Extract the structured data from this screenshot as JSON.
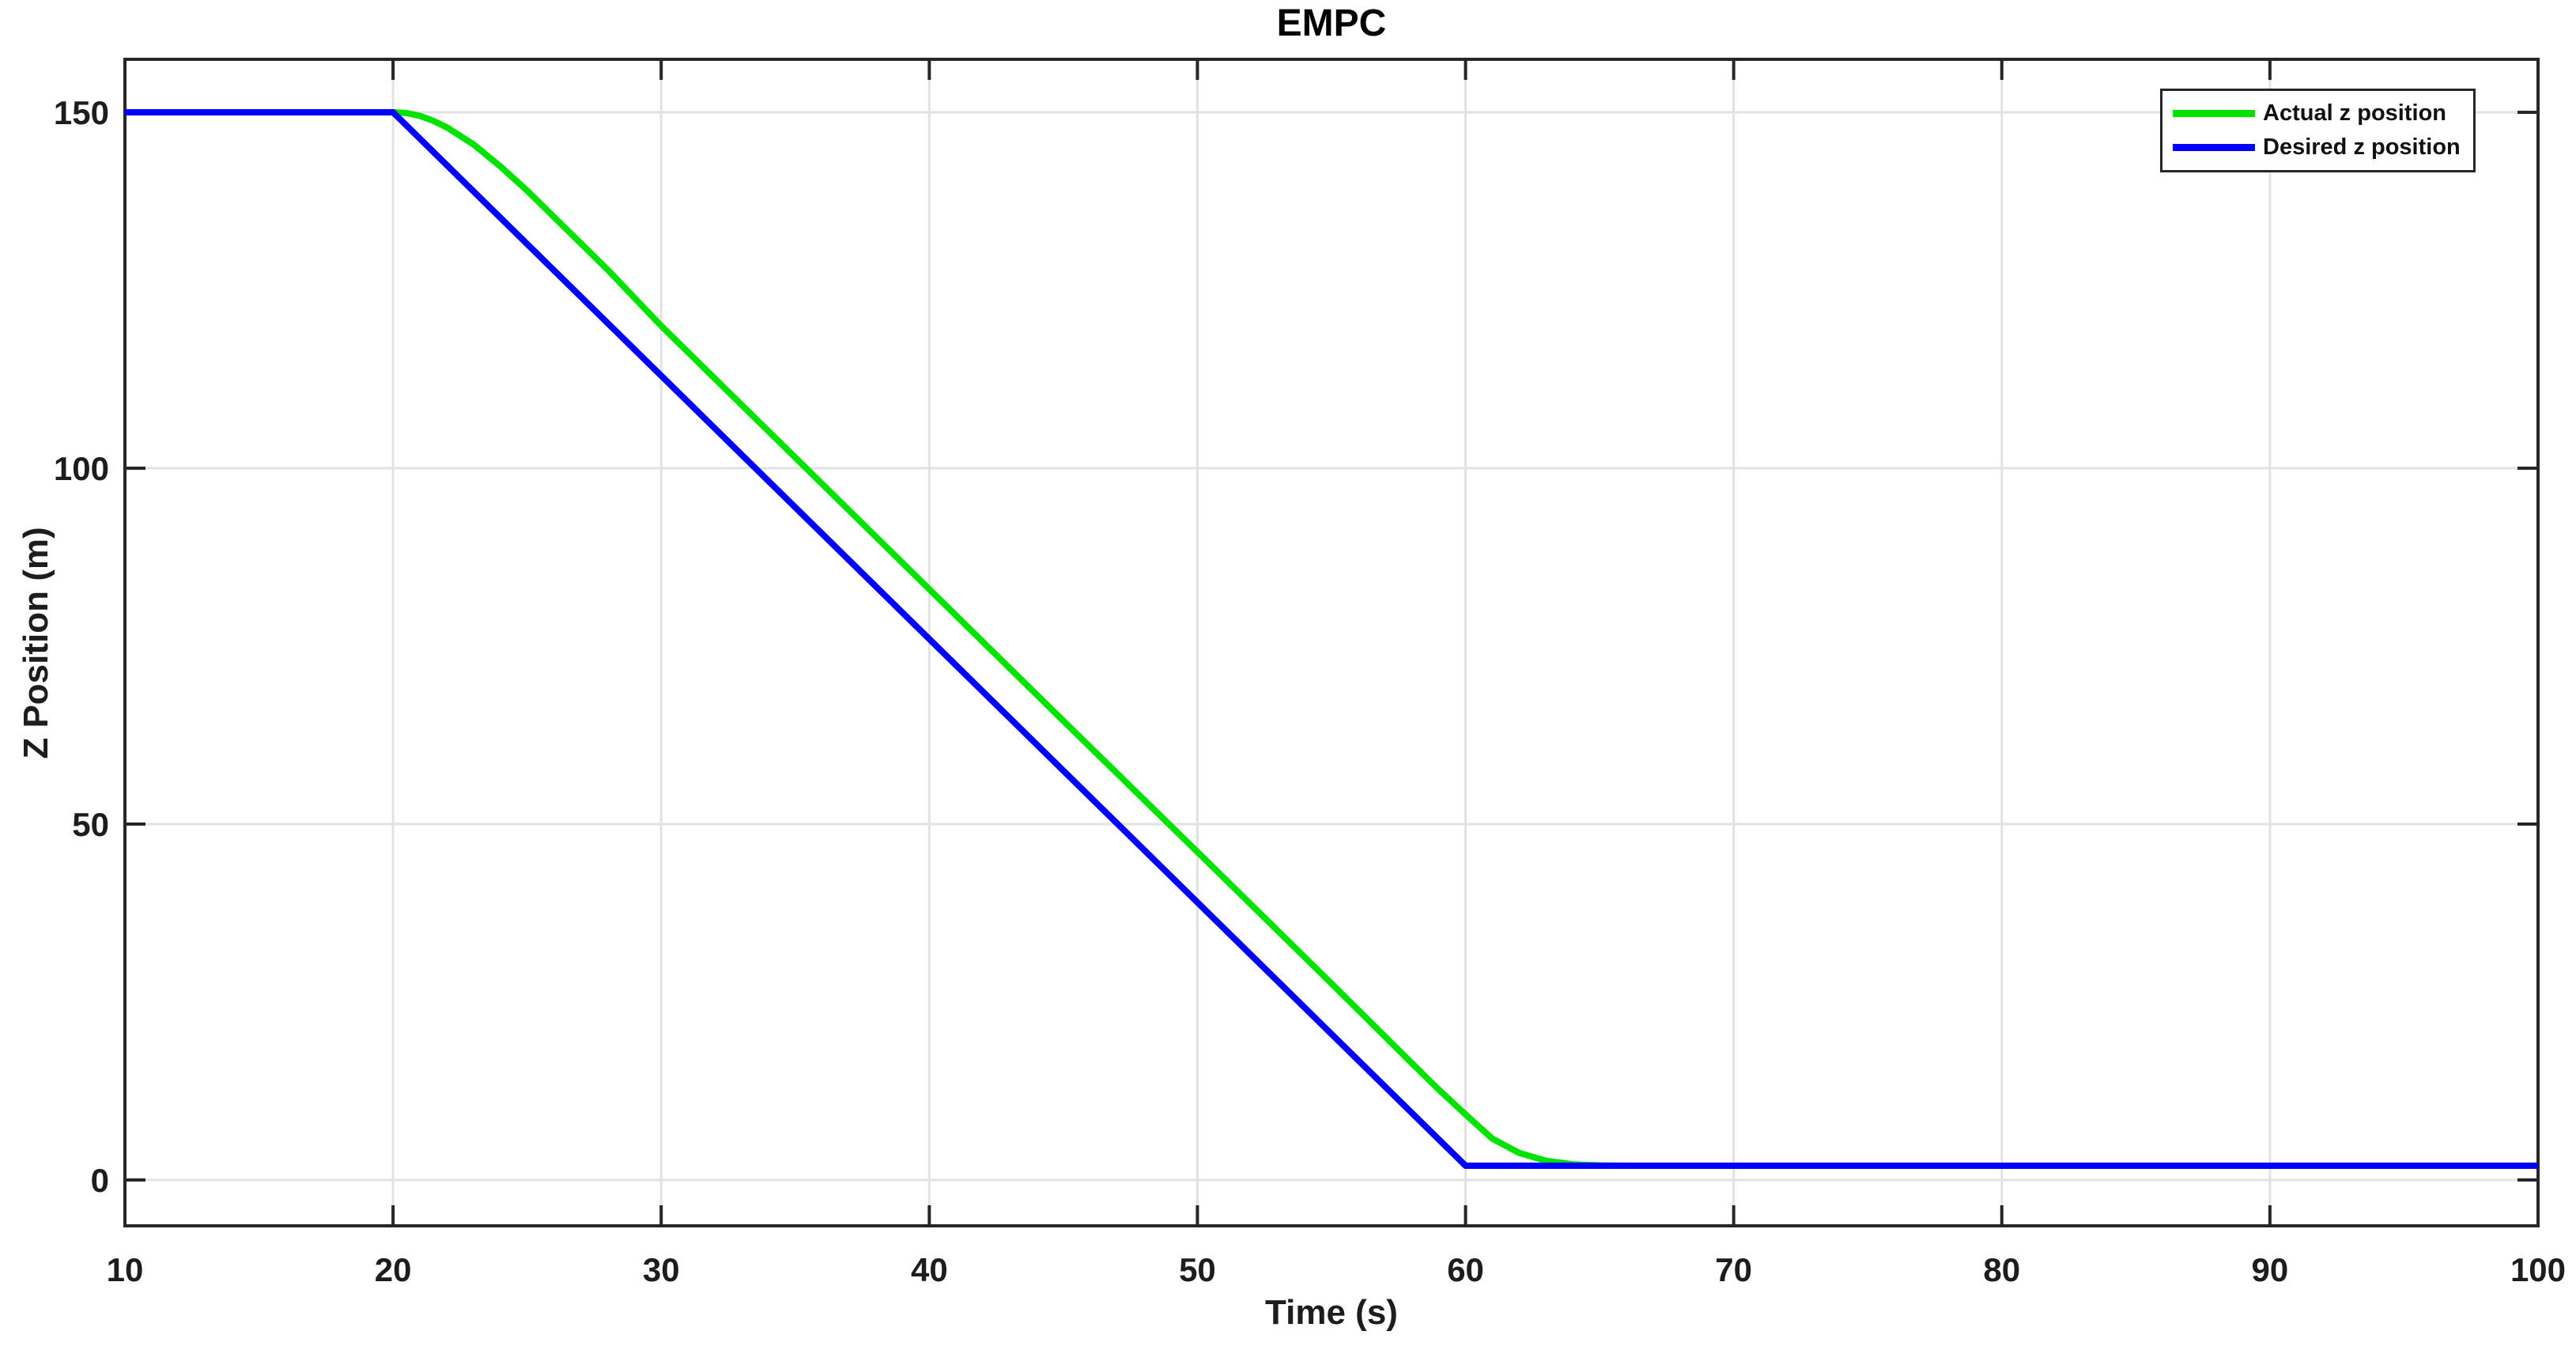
{
  "figure": {
    "title": "EMPC",
    "background": "#FFFFFF"
  },
  "colors": {
    "actual_green": "#00E300",
    "desired_blue": "#0000FF",
    "axis": "#262626",
    "grid": "#E2E2E2",
    "text": "#1D1D1D"
  },
  "legend": {
    "position": "top-right",
    "items": [
      {
        "label": "Actual z position",
        "color": "#00E300"
      },
      {
        "label": "Desired z position",
        "color": "#0000FF"
      }
    ]
  },
  "chart_data": {
    "type": "line",
    "title": "EMPC",
    "xlabel": "Time (s)",
    "ylabel": "Z Position (m)",
    "xlim": [
      10,
      100
    ],
    "ylim": [
      -6.44,
      157.44
    ],
    "xticks": [
      10,
      20,
      30,
      40,
      50,
      60,
      70,
      80,
      90,
      100
    ],
    "yticks": [
      0,
      50,
      100,
      150
    ],
    "grid": true,
    "legend_position": "top-right",
    "series": [
      {
        "name": "Actual z position",
        "color": "#00E300",
        "line_width": 8,
        "points": [
          [
            10,
            150
          ],
          [
            20,
            150
          ],
          [
            20.5,
            149.9
          ],
          [
            21,
            149.5
          ],
          [
            21.5,
            148.8
          ],
          [
            22,
            147.9
          ],
          [
            23,
            145.5
          ],
          [
            24,
            142.4
          ],
          [
            25,
            139.0
          ],
          [
            26,
            135.3
          ],
          [
            27,
            131.6
          ],
          [
            28,
            127.9
          ],
          [
            30,
            120.0
          ],
          [
            35,
            101.5
          ],
          [
            40,
            83.0
          ],
          [
            45,
            64.5
          ],
          [
            50,
            46.1
          ],
          [
            55,
            27.6
          ],
          [
            58,
            16.4
          ],
          [
            59,
            12.7
          ],
          [
            60,
            9.2
          ],
          [
            61,
            5.8
          ],
          [
            62,
            3.8
          ],
          [
            63,
            2.7
          ],
          [
            64,
            2.2
          ],
          [
            65,
            2.05
          ],
          [
            66,
            2
          ],
          [
            70,
            2
          ],
          [
            80,
            2
          ],
          [
            90,
            2
          ],
          [
            100,
            2
          ]
        ]
      },
      {
        "name": "Desired z position",
        "color": "#0000FF",
        "line_width": 8,
        "points": [
          [
            10,
            150
          ],
          [
            20,
            150
          ],
          [
            60,
            2
          ],
          [
            100,
            2
          ]
        ]
      }
    ]
  }
}
